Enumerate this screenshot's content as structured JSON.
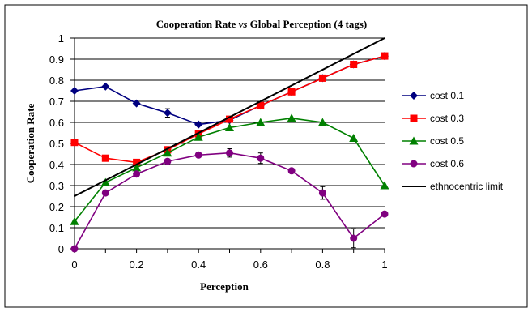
{
  "chart_data": {
    "type": "line",
    "title_parts": [
      "Cooperation Rate ",
      "vs",
      " Global Perception (4 tags)"
    ],
    "xlabel": "Perception",
    "ylabel": "Cooperation Rate",
    "xlim": [
      0,
      1
    ],
    "ylim": [
      0,
      1
    ],
    "x_ticks": [
      "0",
      "0.2",
      "0.4",
      "0.6",
      "0.8",
      "1"
    ],
    "y_ticks": [
      "0",
      "0.1",
      "0.2",
      "0.3",
      "0.4",
      "0.5",
      "0.6",
      "0.7",
      "0.8",
      "0.9",
      "1"
    ],
    "grid": "horizontal",
    "legend_position": "right",
    "x": [
      0,
      0.1,
      0.2,
      0.3,
      0.4,
      0.5,
      0.6,
      0.7,
      0.8,
      0.9,
      1.0
    ],
    "series": [
      {
        "name": "cost 0.1",
        "color": "#000080",
        "marker": "diamond",
        "x": [
          0,
          0.1,
          0.2,
          0.3,
          0.4,
          0.5,
          0.6,
          0.7,
          0.8,
          0.9,
          1.0
        ],
        "values": [
          0.75,
          0.77,
          0.69,
          0.645,
          0.59,
          0.61,
          0.68,
          0.745,
          0.81,
          0.875,
          0.915
        ],
        "errors": [
          0,
          0,
          0,
          0.02,
          0,
          0,
          0,
          0,
          0,
          0,
          0
        ]
      },
      {
        "name": "cost 0.3",
        "color": "#ff0000",
        "marker": "square",
        "x": [
          0,
          0.1,
          0.2,
          0.3,
          0.4,
          0.5,
          0.6,
          0.7,
          0.8,
          0.9,
          1.0
        ],
        "values": [
          0.505,
          0.43,
          0.41,
          0.47,
          0.545,
          0.615,
          0.68,
          0.745,
          0.81,
          0.875,
          0.915
        ],
        "errors": [
          0,
          0,
          0,
          0,
          0,
          0,
          0,
          0,
          0,
          0,
          0
        ]
      },
      {
        "name": "cost 0.5",
        "color": "#008000",
        "marker": "triangle",
        "x": [
          0,
          0.1,
          0.2,
          0.3,
          0.4,
          0.5,
          0.6,
          0.7,
          0.8,
          0.9,
          1.0
        ],
        "values": [
          0.13,
          0.315,
          0.385,
          0.455,
          0.53,
          0.575,
          0.6,
          0.62,
          0.6,
          0.525,
          0.3
        ],
        "errors": [
          0,
          0,
          0,
          0,
          0,
          0,
          0,
          0,
          0,
          0,
          0
        ]
      },
      {
        "name": "cost 0.6",
        "color": "#800080",
        "marker": "circle",
        "x": [
          0,
          0.1,
          0.2,
          0.3,
          0.4,
          0.5,
          0.6,
          0.7,
          0.8,
          0.9,
          1.0
        ],
        "values": [
          0.0,
          0.265,
          0.355,
          0.415,
          0.445,
          0.455,
          0.43,
          0.37,
          0.265,
          0.05,
          0.165
        ],
        "errors": [
          0,
          0,
          0,
          0,
          0,
          0.02,
          0.025,
          0,
          0.03,
          0.045,
          0
        ]
      },
      {
        "name": "ethnocentric limit",
        "color": "#000000",
        "marker": "none",
        "x": [
          0,
          1
        ],
        "values": [
          0.25,
          1.0
        ],
        "errors": [
          0,
          0
        ]
      }
    ]
  }
}
